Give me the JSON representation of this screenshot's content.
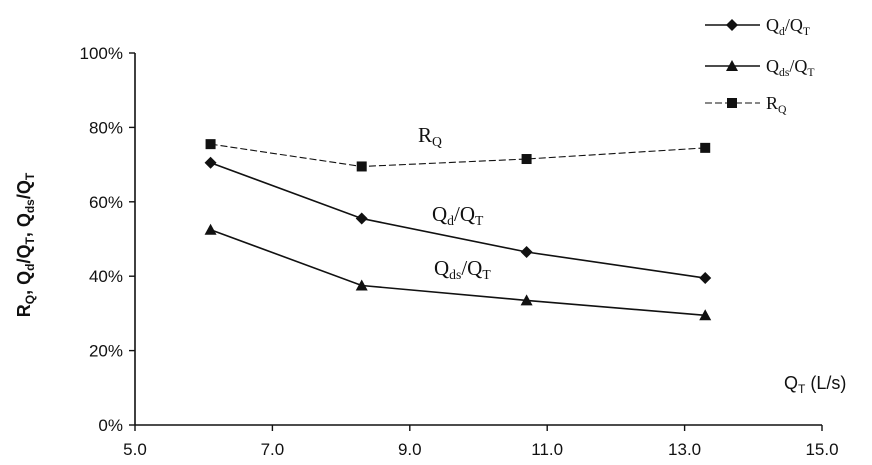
{
  "chart_data": {
    "type": "line",
    "xlabel": "Qᴛ (L/s)",
    "ylabel": "Rₓ, Qd/Qᴛ, Qds/Qᴛ",
    "xlim": [
      5.0,
      15.0
    ],
    "ylim": [
      0,
      100
    ],
    "x_ticks": [
      "5.0",
      "7.0",
      "9.0",
      "11.0",
      "13.0",
      "15.0"
    ],
    "y_ticks": [
      "0%",
      "20%",
      "40%",
      "60%",
      "80%",
      "100%"
    ],
    "x": [
      6.1,
      8.3,
      10.7,
      13.3
    ],
    "series": [
      {
        "name": "Qd/QT",
        "marker": "diamond",
        "line_style": "solid",
        "values": [
          70.5,
          55.5,
          46.5,
          39.5
        ]
      },
      {
        "name": "Qds/QT",
        "marker": "triangle",
        "line_style": "solid",
        "values": [
          52.5,
          37.5,
          33.5,
          29.5
        ]
      },
      {
        "name": "RQ",
        "marker": "square",
        "line_style": "dashed",
        "values": [
          75.5,
          69.5,
          71.5,
          74.5
        ]
      }
    ],
    "annotations": [
      {
        "text": "RQ",
        "series": "RQ"
      },
      {
        "text": "Qd/QT",
        "series": "Qd/QT"
      },
      {
        "text": "Qds/QT",
        "series": "Qds/QT"
      }
    ],
    "legend": {
      "position": "top-right"
    },
    "grid": false,
    "colors": {
      "line": "#111111",
      "background": "#ffffff"
    }
  }
}
